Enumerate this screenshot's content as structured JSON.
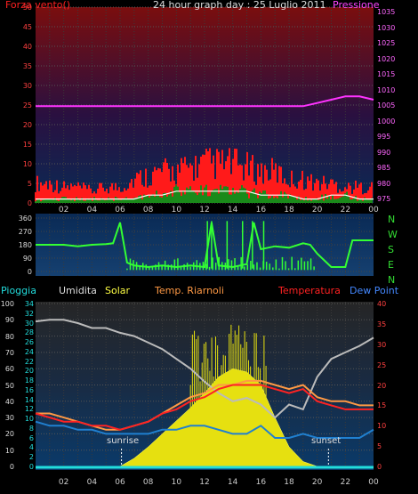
{
  "title": "24 hour graph day : 25 Luglio 2011",
  "panel1": {
    "left_label": "Forza vento()",
    "right_label": "Pressione",
    "left_ticks": [
      "0",
      "5",
      "10",
      "15",
      "20",
      "25",
      "30",
      "35",
      "40",
      "45",
      "50"
    ],
    "right_ticks": [
      "975",
      "980",
      "985",
      "990",
      "995",
      "1000",
      "1005",
      "1010",
      "1015",
      "1020",
      "1025",
      "1030",
      "1035"
    ],
    "colors": {
      "left_label": "#ff2020",
      "right_label": "#ff44ff",
      "pressure": "#ff33ff",
      "gust": "#ff1a1a",
      "avg_wind": "#ffffff",
      "fill": "#1a8a1a"
    }
  },
  "panel2": {
    "ticks": [
      "0",
      "90",
      "180",
      "270",
      "360"
    ],
    "compass": [
      "N",
      "W",
      "S",
      "E",
      "N"
    ],
    "colors": {
      "line": "#33ff33",
      "compass": "#33dd33"
    }
  },
  "panel3": {
    "labels": [
      "Pioggia",
      "Umidita",
      "Solar",
      "Temp. Riarnoli",
      "Temperatura",
      "Dew Point"
    ],
    "label_colors": [
      "#22dddd",
      "#dddddd",
      "#ffff44",
      "#ff9944",
      "#ff2222",
      "#4488ff"
    ],
    "left_ticks": [
      "0",
      "10",
      "20",
      "30",
      "40",
      "50",
      "60",
      "70",
      "80",
      "90",
      "100"
    ],
    "inner_ticks": [
      "0",
      "2",
      "4",
      "6",
      "8",
      "10",
      "12",
      "14",
      "16",
      "18",
      "20",
      "22",
      "24",
      "26",
      "28",
      "30",
      "32",
      "34"
    ],
    "right_ticks": [
      "0",
      "5",
      "10",
      "15",
      "20",
      "25",
      "30",
      "35",
      "40"
    ],
    "sunrise": "sunrise",
    "sunset": "sunset"
  },
  "x_ticks": [
    "02",
    "04",
    "06",
    "08",
    "10",
    "12",
    "14",
    "16",
    "18",
    "20",
    "22",
    "00"
  ],
  "chart_data": [
    {
      "type": "line",
      "x": [
        0,
        1,
        2,
        3,
        4,
        5,
        6,
        7,
        8,
        9,
        10,
        11,
        12,
        13,
        14,
        15,
        16,
        17,
        18,
        19,
        20,
        21,
        22,
        23,
        24
      ],
      "series": [
        {
          "name": "Pressione",
          "axis": "right",
          "values": [
            1006,
            1006,
            1006,
            1006,
            1006,
            1006,
            1006,
            1006,
            1006,
            1006,
            1006,
            1006,
            1006,
            1006,
            1006,
            1006,
            1006,
            1006,
            1006,
            1006,
            1007,
            1008,
            1009,
            1009,
            1008
          ]
        },
        {
          "name": "Forza vento",
          "axis": "left",
          "kind": "gust",
          "values": [
            5,
            5,
            4,
            4,
            3,
            4,
            4,
            6,
            7,
            8,
            8,
            9,
            10,
            10,
            10,
            9,
            8,
            8,
            6,
            6,
            5,
            5,
            4,
            4,
            4
          ]
        },
        {
          "name": "Forza vento",
          "axis": "left",
          "kind": "average",
          "values": [
            1,
            1,
            1,
            1,
            1,
            1,
            1,
            1,
            2,
            2,
            3,
            3,
            3,
            3,
            3,
            3,
            2,
            2,
            2,
            1,
            1,
            2,
            2,
            1,
            1
          ]
        }
      ],
      "ylim_left": [
        0,
        50
      ],
      "ylim_right": [
        975,
        1035
      ]
    },
    {
      "type": "line",
      "x": [
        0,
        1,
        2,
        3,
        4,
        5,
        5.5,
        6,
        6.5,
        7,
        8,
        9,
        10,
        11,
        12,
        12.5,
        13,
        14,
        15,
        15.5,
        16,
        17,
        18,
        19,
        19.5,
        20,
        21,
        22,
        22.5,
        23,
        24
      ],
      "series": [
        {
          "name": "direction",
          "values": [
            180,
            180,
            180,
            170,
            180,
            185,
            190,
            330,
            60,
            40,
            30,
            40,
            30,
            40,
            30,
            330,
            40,
            30,
            50,
            330,
            150,
            170,
            160,
            190,
            180,
            120,
            30,
            30,
            210,
            210,
            210
          ]
        }
      ],
      "ylim": [
        0,
        360
      ]
    },
    {
      "type": "line",
      "x": [
        0,
        1,
        2,
        3,
        4,
        5,
        6,
        7,
        8,
        9,
        10,
        11,
        12,
        13,
        14,
        15,
        16,
        17,
        18,
        19,
        20,
        21,
        22,
        23,
        24
      ],
      "series": [
        {
          "name": "Umidita",
          "axis": "left",
          "values": [
            89,
            90,
            90,
            88,
            85,
            85,
            82,
            80,
            76,
            72,
            66,
            60,
            52,
            45,
            40,
            42,
            38,
            30,
            38,
            35,
            55,
            66,
            70,
            74,
            79
          ]
        },
        {
          "name": "Solar",
          "axis": "left",
          "values": [
            0,
            0,
            0,
            0,
            0,
            0,
            0,
            5,
            12,
            20,
            28,
            36,
            45,
            55,
            60,
            58,
            50,
            30,
            12,
            3,
            0,
            0,
            0,
            0,
            0
          ]
        },
        {
          "name": "Temp. Riarnoli",
          "axis": "right",
          "values": [
            13,
            13,
            12,
            11,
            10,
            9,
            9,
            10,
            11,
            13,
            15,
            17,
            18,
            20,
            20,
            21,
            21,
            20,
            19,
            20,
            17,
            16,
            16,
            15,
            15
          ]
        },
        {
          "name": "Temperatura",
          "axis": "right",
          "values": [
            13,
            12,
            11,
            11,
            10,
            10,
            9,
            10,
            11,
            13,
            14,
            16,
            17,
            19,
            20,
            20,
            20,
            19,
            18,
            19,
            16,
            15,
            14,
            14,
            14
          ]
        },
        {
          "name": "Dew Point",
          "axis": "right",
          "values": [
            11,
            10,
            10,
            9,
            9,
            8,
            8,
            8,
            8,
            9,
            9,
            10,
            10,
            9,
            8,
            8,
            10,
            7,
            7,
            8,
            7,
            7,
            7,
            7,
            9
          ]
        },
        {
          "name": "Pioggia",
          "axis": "left",
          "values": [
            0,
            0,
            0,
            0,
            0,
            0,
            0,
            0,
            0,
            0,
            0,
            0,
            0,
            0,
            0,
            0,
            0,
            0,
            0,
            0,
            0,
            0,
            0,
            0,
            0
          ]
        }
      ],
      "ylim_left": [
        0,
        100
      ],
      "ylim_right": [
        0,
        40
      ]
    }
  ]
}
